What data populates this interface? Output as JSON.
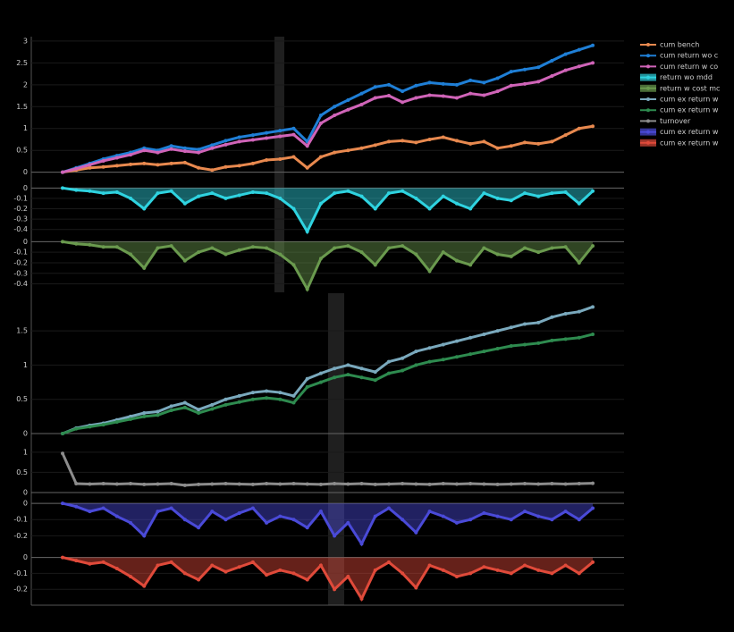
{
  "chart_data": [
    {
      "type": "line",
      "ylim": [
        -0.15,
        3.1
      ],
      "yticks": [
        0,
        0.5,
        1,
        1.5,
        2,
        2.5,
        3
      ],
      "series": [
        {
          "name": "cum bench",
          "color": "#e8894f",
          "values": [
            0,
            0.05,
            0.1,
            0.12,
            0.15,
            0.18,
            0.2,
            0.17,
            0.2,
            0.22,
            0.1,
            0.05,
            0.12,
            0.15,
            0.2,
            0.28,
            0.3,
            0.35,
            0.1,
            0.35,
            0.45,
            0.5,
            0.55,
            0.62,
            0.7,
            0.72,
            0.68,
            0.75,
            0.8,
            0.72,
            0.65,
            0.7,
            0.55,
            0.6,
            0.68,
            0.65,
            0.7,
            0.85,
            1.0,
            1.05
          ]
        },
        {
          "name": "cum return wo c",
          "color": "#1f7fd6",
          "values": [
            0,
            0.1,
            0.2,
            0.3,
            0.38,
            0.45,
            0.55,
            0.5,
            0.6,
            0.55,
            0.52,
            0.62,
            0.72,
            0.8,
            0.85,
            0.9,
            0.95,
            1.0,
            0.7,
            1.3,
            1.5,
            1.65,
            1.8,
            1.95,
            2.0,
            1.85,
            1.98,
            2.05,
            2.02,
            2.0,
            2.1,
            2.05,
            2.15,
            2.3,
            2.35,
            2.4,
            2.55,
            2.7,
            2.8,
            2.9
          ]
        },
        {
          "name": "cum return w co",
          "color": "#d064b8",
          "values": [
            0,
            0.08,
            0.17,
            0.26,
            0.33,
            0.4,
            0.5,
            0.45,
            0.53,
            0.48,
            0.45,
            0.55,
            0.63,
            0.7,
            0.74,
            0.78,
            0.82,
            0.86,
            0.6,
            1.12,
            1.3,
            1.43,
            1.55,
            1.7,
            1.75,
            1.6,
            1.7,
            1.76,
            1.74,
            1.7,
            1.8,
            1.76,
            1.85,
            1.98,
            2.02,
            2.07,
            2.2,
            2.33,
            2.42,
            2.5
          ]
        }
      ]
    },
    {
      "type": "area",
      "ylim": [
        -0.48,
        0.02
      ],
      "yticks": [
        0,
        -0.1,
        -0.2,
        -0.3,
        -0.4
      ],
      "series": [
        {
          "name": "return wo mdd",
          "color": "#2fd3e0",
          "values": [
            0,
            -0.02,
            -0.03,
            -0.05,
            -0.04,
            -0.1,
            -0.2,
            -0.05,
            -0.03,
            -0.15,
            -0.08,
            -0.05,
            -0.1,
            -0.07,
            -0.04,
            -0.05,
            -0.1,
            -0.2,
            -0.42,
            -0.15,
            -0.05,
            -0.03,
            -0.08,
            -0.2,
            -0.05,
            -0.03,
            -0.1,
            -0.2,
            -0.08,
            -0.15,
            -0.2,
            -0.05,
            -0.1,
            -0.12,
            -0.05,
            -0.08,
            -0.05,
            -0.04,
            -0.15,
            -0.03
          ]
        }
      ]
    },
    {
      "type": "area",
      "ylim": [
        -0.48,
        0.02
      ],
      "yticks": [
        0,
        -0.1,
        -0.2,
        -0.3,
        -0.4
      ],
      "series": [
        {
          "name": "return w cost mc",
          "color": "#6a9a4e",
          "values": [
            0,
            -0.02,
            -0.03,
            -0.05,
            -0.05,
            -0.12,
            -0.25,
            -0.06,
            -0.04,
            -0.18,
            -0.1,
            -0.06,
            -0.12,
            -0.08,
            -0.05,
            -0.06,
            -0.12,
            -0.22,
            -0.45,
            -0.16,
            -0.06,
            -0.04,
            -0.1,
            -0.22,
            -0.06,
            -0.04,
            -0.12,
            -0.28,
            -0.1,
            -0.18,
            -0.22,
            -0.06,
            -0.12,
            -0.14,
            -0.06,
            -0.1,
            -0.06,
            -0.05,
            -0.2,
            -0.04
          ]
        }
      ]
    },
    {
      "type": "line",
      "ylim": [
        -0.065,
        2.05
      ],
      "yticks": [
        0,
        0.5,
        1,
        1.5
      ],
      "series": [
        {
          "name": "cum ex return w",
          "color": "#7aa9bd",
          "values": [
            0,
            0.08,
            0.12,
            0.15,
            0.2,
            0.25,
            0.3,
            0.32,
            0.4,
            0.45,
            0.35,
            0.42,
            0.5,
            0.55,
            0.6,
            0.62,
            0.6,
            0.55,
            0.8,
            0.88,
            0.95,
            1.0,
            0.95,
            0.9,
            1.05,
            1.1,
            1.2,
            1.25,
            1.3,
            1.35,
            1.4,
            1.45,
            1.5,
            1.55,
            1.6,
            1.62,
            1.7,
            1.75,
            1.78,
            1.85
          ]
        },
        {
          "name": "cum ex return w",
          "color": "#2e8b4f",
          "values": [
            0,
            0.07,
            0.1,
            0.13,
            0.17,
            0.21,
            0.25,
            0.27,
            0.34,
            0.38,
            0.3,
            0.36,
            0.42,
            0.46,
            0.5,
            0.52,
            0.5,
            0.45,
            0.68,
            0.75,
            0.82,
            0.86,
            0.82,
            0.78,
            0.88,
            0.92,
            1.0,
            1.05,
            1.08,
            1.12,
            1.16,
            1.2,
            1.24,
            1.28,
            1.3,
            1.32,
            1.36,
            1.38,
            1.4,
            1.45
          ]
        }
      ]
    },
    {
      "type": "line",
      "ylim": [
        -0.09,
        1.13
      ],
      "yticks": [
        0,
        0.5,
        1
      ],
      "series": [
        {
          "name": "turnover",
          "color": "#8c8c8c",
          "values": [
            0.97,
            0.22,
            0.21,
            0.22,
            0.21,
            0.22,
            0.2,
            0.21,
            0.22,
            0.18,
            0.2,
            0.21,
            0.22,
            0.21,
            0.2,
            0.22,
            0.21,
            0.22,
            0.21,
            0.2,
            0.22,
            0.21,
            0.22,
            0.2,
            0.21,
            0.22,
            0.21,
            0.2,
            0.22,
            0.21,
            0.22,
            0.21,
            0.2,
            0.21,
            0.22,
            0.21,
            0.22,
            0.21,
            0.22,
            0.23
          ]
        }
      ]
    },
    {
      "type": "area",
      "ylim": [
        -0.27,
        0.017
      ],
      "yticks": [
        0,
        -0.1,
        -0.2
      ],
      "series": [
        {
          "name": "cum ex return w",
          "color": "#4a4ad8",
          "values": [
            0,
            -0.02,
            -0.05,
            -0.03,
            -0.08,
            -0.12,
            -0.2,
            -0.05,
            -0.03,
            -0.1,
            -0.15,
            -0.05,
            -0.1,
            -0.06,
            -0.03,
            -0.12,
            -0.08,
            -0.1,
            -0.15,
            -0.05,
            -0.2,
            -0.12,
            -0.25,
            -0.08,
            -0.03,
            -0.1,
            -0.18,
            -0.05,
            -0.08,
            -0.12,
            -0.1,
            -0.06,
            -0.08,
            -0.1,
            -0.05,
            -0.08,
            -0.1,
            -0.05,
            -0.1,
            -0.03
          ]
        }
      ]
    },
    {
      "type": "area",
      "ylim": [
        -0.3,
        0.02
      ],
      "yticks": [
        0,
        -0.1,
        -0.2
      ],
      "series": [
        {
          "name": "cum ex return w",
          "color": "#e04a3a",
          "values": [
            0,
            -0.02,
            -0.04,
            -0.03,
            -0.07,
            -0.12,
            -0.18,
            -0.05,
            -0.03,
            -0.1,
            -0.14,
            -0.05,
            -0.09,
            -0.06,
            -0.03,
            -0.11,
            -0.08,
            -0.1,
            -0.14,
            -0.05,
            -0.2,
            -0.12,
            -0.26,
            -0.08,
            -0.03,
            -0.1,
            -0.19,
            -0.05,
            -0.08,
            -0.12,
            -0.1,
            -0.06,
            -0.08,
            -0.1,
            -0.05,
            -0.08,
            -0.1,
            -0.05,
            -0.1,
            -0.03
          ]
        }
      ]
    }
  ]
}
